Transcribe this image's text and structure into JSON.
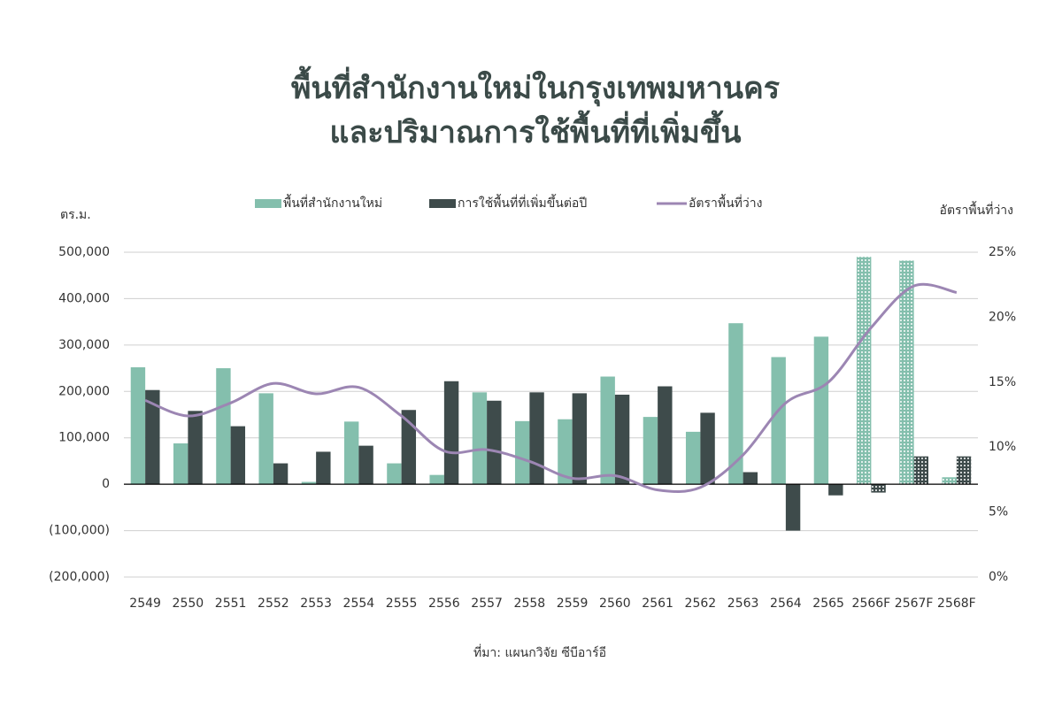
{
  "chart_data": {
    "type": "bar",
    "title": [
      "พื้นที่สำนักงานใหม่ในกรุงเทพมหานคร",
      "และปริมาณการใช้พื้นที่ที่เพิ่มขึ้น"
    ],
    "y_label": "ตร.ม.",
    "y2_label": "อัตราพื้นที่ว่าง",
    "source": "ที่มา: แผนกวิจัย ซีบีอาร์อี",
    "categories": [
      "2549",
      "2550",
      "2551",
      "2552",
      "2553",
      "2554",
      "2555",
      "2556",
      "2557",
      "2558",
      "2559",
      "2560",
      "2561",
      "2562",
      "2563",
      "2564",
      "2565",
      "2566F",
      "2567F",
      "2568F"
    ],
    "series": [
      {
        "name": "พื้นที่สำนักงานใหม่",
        "type": "bar",
        "color": "#84bfad",
        "values": [
          252000,
          88000,
          250000,
          196000,
          5000,
          135000,
          45000,
          20000,
          198000,
          136000,
          140000,
          232000,
          145000,
          113000,
          347000,
          274000,
          318000,
          490000,
          482000,
          15000
        ]
      },
      {
        "name": "การใช้พื้นที่ที่เพิ่มขึ้นต่อปี",
        "type": "bar",
        "color": "#3e4b4b",
        "values": [
          203000,
          158000,
          125000,
          45000,
          70000,
          83000,
          160000,
          222000,
          180000,
          198000,
          196000,
          193000,
          211000,
          154000,
          26000,
          -100000,
          -24000,
          -18000,
          60000,
          60000
        ]
      },
      {
        "name": "อัตราพื้นที่ว่าง",
        "type": "line",
        "axis": "y2",
        "color": "#9c86b3",
        "values": [
          13.6,
          12.4,
          13.4,
          14.9,
          14.1,
          14.6,
          12.4,
          9.7,
          9.8,
          8.9,
          7.6,
          7.8,
          6.7,
          6.9,
          9.4,
          13.4,
          15.0,
          19.2,
          22.4,
          21.9
        ]
      }
    ],
    "ylim": [
      -200000,
      500000
    ],
    "yticks": [
      {
        "value": -200000,
        "label": "(200,000)"
      },
      {
        "value": -100000,
        "label": "(100,000)"
      },
      0,
      {
        "value": 100000,
        "label": "100,000"
      },
      {
        "value": 200000,
        "label": "200,000"
      },
      {
        "value": 300000,
        "label": "300,000"
      },
      {
        "value": 400000,
        "label": "400,000"
      },
      {
        "value": 500000,
        "label": "500,000"
      }
    ],
    "y2lim": [
      0,
      25
    ],
    "y2ticks": [
      {
        "value": 0,
        "label": "0%"
      },
      {
        "value": 5,
        "label": "5%"
      },
      {
        "value": 10,
        "label": "10%"
      },
      {
        "value": 15,
        "label": "15%"
      },
      {
        "value": 20,
        "label": "20%"
      },
      {
        "value": 25,
        "label": "25%"
      }
    ],
    "grid": true
  }
}
